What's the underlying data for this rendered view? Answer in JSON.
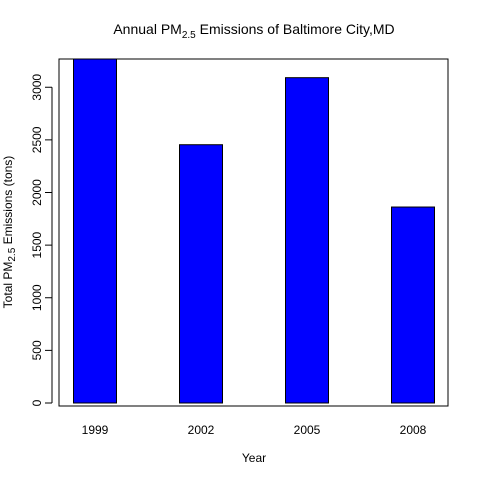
{
  "chart_data": {
    "type": "bar",
    "title": {
      "prefix": "Annual PM",
      "subscript": "2.5",
      "suffix": " Emissions of Baltimore City,MD"
    },
    "xlabel": "Year",
    "ylabel": {
      "prefix": "Total PM",
      "subscript": "2.5",
      "suffix": " Emissions (tons)"
    },
    "categories": [
      "1999",
      "2002",
      "2005",
      "2008"
    ],
    "values": [
      3274,
      2454,
      3091,
      1862
    ],
    "ylim": [
      0,
      3274
    ],
    "yticks": [
      0,
      500,
      1000,
      1500,
      2000,
      2500,
      3000
    ],
    "bar_color": "#0000FF",
    "bar_border_color": "#000000",
    "grid": false,
    "legend": "none"
  }
}
